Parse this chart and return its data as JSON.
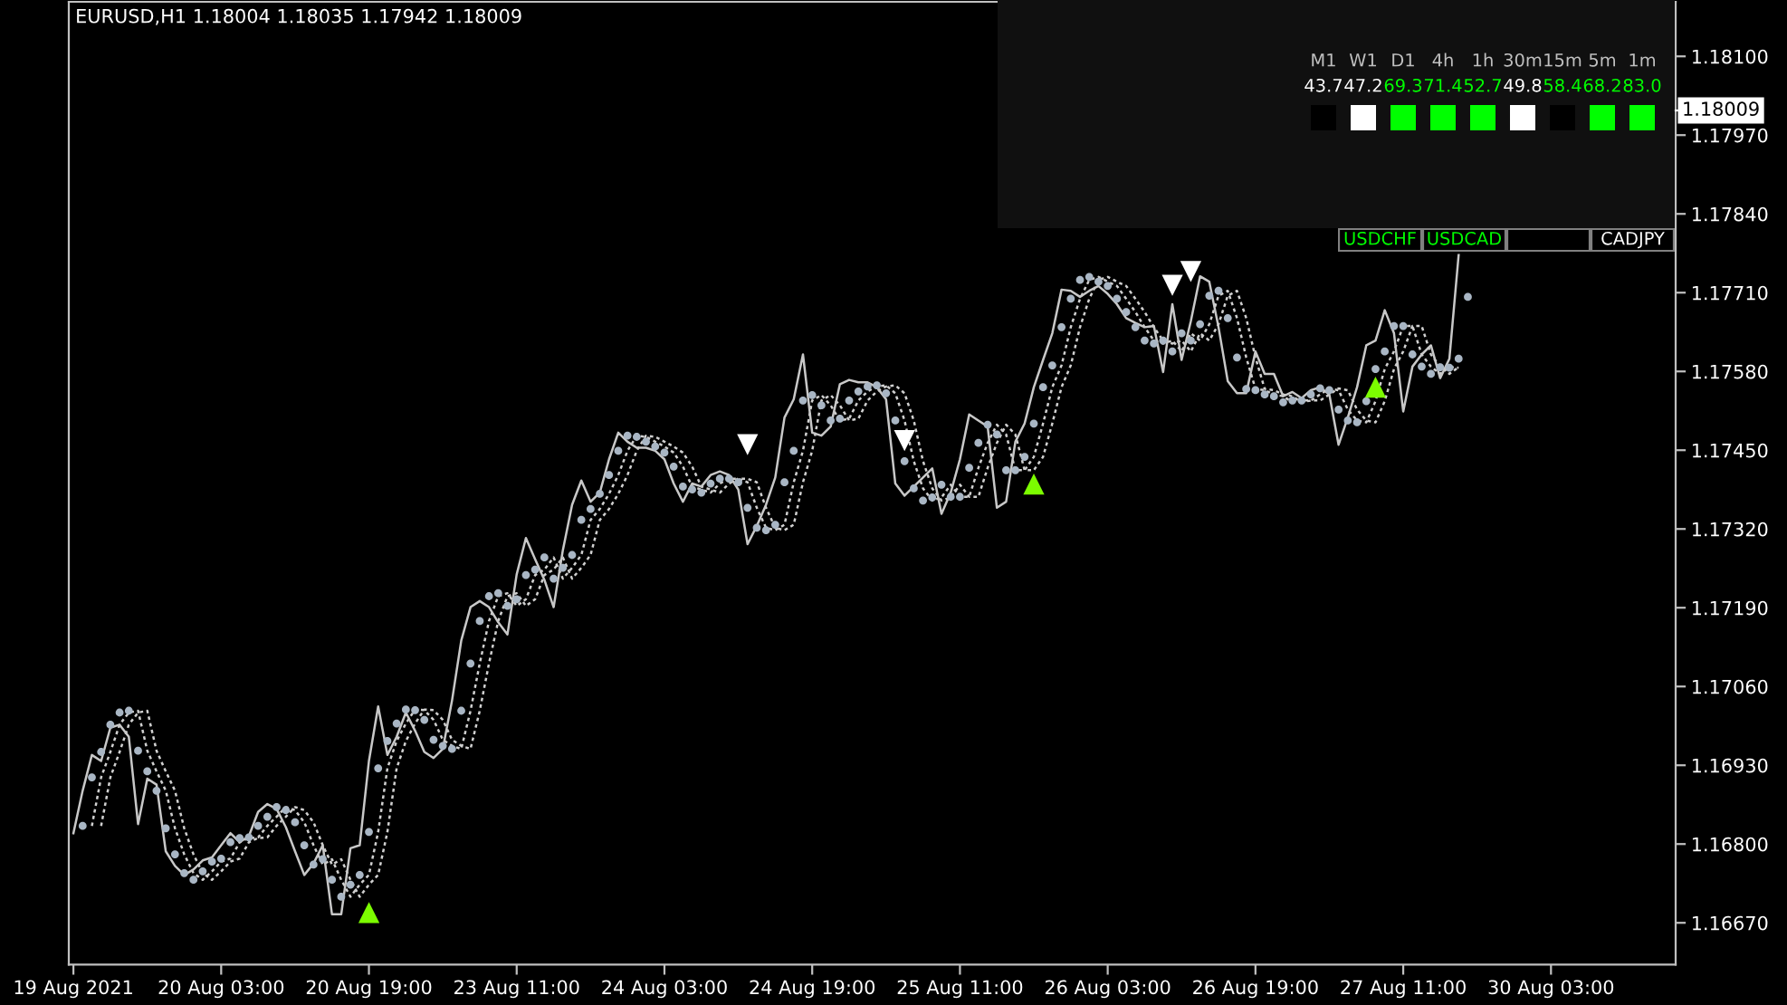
{
  "chart_data": [
    {
      "type": "line",
      "title": "EURUSD,H1 1.18004 1.18035 1.17942 1.18009",
      "categories": [
        "19 Aug 2021",
        null,
        null,
        null,
        null,
        null,
        null,
        null,
        null,
        null,
        null,
        null,
        null,
        null,
        null,
        null,
        "20 Aug 03:00",
        null,
        null,
        null,
        null,
        null,
        null,
        null,
        null,
        null,
        null,
        null,
        null,
        null,
        null,
        null,
        "20 Aug 19:00",
        null,
        null,
        null,
        null,
        null,
        null,
        null,
        null,
        null,
        null,
        null,
        null,
        null,
        null,
        null,
        "23 Aug 11:00",
        null,
        null,
        null,
        null,
        null,
        null,
        null,
        null,
        null,
        null,
        null,
        null,
        null,
        null,
        null,
        "24 Aug 03:00",
        null,
        null,
        null,
        null,
        null,
        null,
        null,
        null,
        null,
        null,
        null,
        null,
        null,
        null,
        null,
        "24 Aug 19:00",
        null,
        null,
        null,
        null,
        null,
        null,
        null,
        null,
        null,
        null,
        null,
        null,
        null,
        null,
        null,
        "25 Aug 11:00",
        null,
        null,
        null,
        null,
        null,
        null,
        null,
        null,
        null,
        null,
        null,
        null,
        null,
        null,
        null,
        "26 Aug 03:00",
        null,
        null,
        null,
        null,
        null,
        null,
        null,
        null,
        null,
        null,
        null,
        null,
        null,
        null,
        null,
        "26 Aug 19:00",
        null,
        null,
        null,
        null,
        null,
        null,
        null,
        null,
        null,
        null,
        null,
        null,
        null,
        null,
        null,
        "27 Aug 11:00",
        null,
        null,
        null,
        null,
        null,
        null,
        null,
        null,
        null,
        null,
        null,
        null,
        null,
        null,
        null,
        "30 Aug 03:00",
        null,
        null,
        null,
        null,
        null,
        null,
        null,
        null,
        null,
        null,
        null,
        null,
        null
      ],
      "series": [
        {
          "type": "line",
          "line_style": "dotted",
          "color": "#d0d0d0",
          "values": [
            null,
            null,
            1.1683,
            1.1691,
            1.16952,
            1.16997,
            1.17017,
            1.1702,
            1.16954,
            1.1692,
            1.16888,
            1.16826,
            1.16783,
            1.16752,
            1.16741,
            1.16755,
            1.16771,
            1.16776,
            1.16803,
            1.1681,
            1.16811,
            1.1683,
            1.16845,
            1.16861,
            1.16856,
            1.16836,
            1.16798,
            1.16766,
            1.16775,
            1.16741,
            1.16713,
            1.16733,
            1.16749,
            1.1682,
            1.16925,
            1.1697,
            1.16999,
            1.17022,
            1.17021,
            1.17005,
            1.16972,
            1.16962,
            1.16957,
            1.1702,
            1.17098,
            1.17168,
            1.17209,
            1.17214,
            1.17193,
            1.17204,
            1.17244,
            1.17253,
            1.17273,
            1.17238,
            1.17256,
            1.17277,
            1.17335,
            1.17353,
            1.17378,
            1.17409,
            1.17449,
            1.17474,
            1.17472,
            1.17464,
            1.17456,
            1.17446,
            1.17423,
            1.1739,
            1.17385,
            1.1738,
            1.17395,
            1.17403,
            1.17403,
            1.17397,
            1.17355,
            1.17322,
            1.17318,
            1.17327,
            1.17397,
            1.17449,
            1.17532,
            1.17541,
            1.17524,
            1.17499,
            1.17502,
            1.17532,
            1.17547,
            1.17555,
            1.17557,
            1.17544,
            1.17499,
            1.17432,
            1.17387,
            1.17367,
            1.17372,
            1.17393,
            1.17373,
            1.17373,
            1.17421,
            1.17462,
            1.17492,
            1.17476,
            1.17417,
            1.17417,
            1.17439,
            1.17494,
            1.17554,
            1.1759,
            1.17653,
            1.177,
            1.17731,
            1.17736,
            1.17728,
            1.17721,
            1.177,
            1.17678,
            1.17653,
            1.17631,
            1.17626,
            1.17631,
            1.17613,
            1.17643,
            1.17631,
            1.17658,
            1.17705,
            1.17713,
            1.17668,
            1.17603,
            1.17551,
            1.17549,
            1.17542,
            1.17539,
            1.17529,
            1.17532,
            1.17532,
            1.17542,
            1.17552,
            1.17549,
            1.17517,
            1.17499,
            1.17496,
            1.17531,
            1.17584,
            1.17613,
            1.17655,
            1.17655,
            1.17608,
            1.17588,
            1.17576,
            1.17587,
            1.17586,
            null,
            null,
            null,
            null,
            null,
            null,
            null,
            null,
            null,
            null,
            null,
            null,
            null,
            null,
            null,
            null,
            null,
            null,
            null,
            null,
            null,
            null,
            null
          ]
        },
        {
          "type": "line",
          "line_style": "dotted",
          "color": "#d0d0d0",
          "values": [
            null,
            null,
            null,
            1.1683,
            1.1691,
            1.16952,
            1.16997,
            1.17017,
            1.1702,
            1.16954,
            1.1692,
            1.16888,
            1.16826,
            1.16783,
            1.16752,
            1.16741,
            1.16755,
            1.16771,
            1.16776,
            1.16803,
            1.1681,
            1.16811,
            1.1683,
            1.16845,
            1.16861,
            1.16856,
            1.16836,
            1.16798,
            1.16766,
            1.16775,
            1.16741,
            1.16713,
            1.16733,
            1.16749,
            1.1682,
            1.16925,
            1.1697,
            1.16999,
            1.17022,
            1.17021,
            1.17005,
            1.16972,
            1.16962,
            1.16957,
            1.1702,
            1.17098,
            1.17168,
            1.17209,
            1.17214,
            1.17193,
            1.17204,
            1.17244,
            1.17253,
            1.17273,
            1.17238,
            1.17256,
            1.17277,
            1.17335,
            1.17353,
            1.17378,
            1.17409,
            1.17449,
            1.17474,
            1.17472,
            1.17464,
            1.17456,
            1.17446,
            1.17423,
            1.1739,
            1.17385,
            1.1738,
            1.17395,
            1.17403,
            1.17403,
            1.17397,
            1.17355,
            1.17322,
            1.17318,
            1.17327,
            1.17397,
            1.17449,
            1.17532,
            1.17541,
            1.17524,
            1.17499,
            1.17502,
            1.17532,
            1.17547,
            1.17555,
            1.17557,
            1.17544,
            1.17499,
            1.17432,
            1.17387,
            1.17367,
            1.17372,
            1.17393,
            1.17373,
            1.17373,
            1.17421,
            1.17462,
            1.17492,
            1.17476,
            1.17417,
            1.17417,
            1.17439,
            1.17494,
            1.17554,
            1.1759,
            1.17653,
            1.177,
            1.17731,
            1.17736,
            1.17728,
            1.17721,
            1.177,
            1.17678,
            1.17653,
            1.17631,
            1.17626,
            1.17631,
            1.17613,
            1.17643,
            1.17631,
            1.17658,
            1.17705,
            1.17713,
            1.17668,
            1.17603,
            1.17551,
            1.17549,
            1.17542,
            1.17539,
            1.17529,
            1.17532,
            1.17532,
            1.17542,
            1.17552,
            1.17549,
            1.17517,
            1.17499,
            1.17496,
            1.17531,
            1.17584,
            1.17613,
            1.17655,
            1.17655,
            1.17608,
            1.17588,
            1.17576,
            1.17587,
            null,
            null,
            null,
            null,
            null,
            null,
            null,
            null,
            null,
            null,
            null,
            null,
            null,
            null,
            null,
            null,
            null,
            null,
            null,
            null,
            null,
            null,
            null
          ]
        },
        {
          "type": "line",
          "line_style": "solid",
          "color": "#c8c8c8",
          "values": [
            1.16818,
            1.16888,
            1.16947,
            1.16937,
            1.16992,
            1.16997,
            1.16977,
            1.16833,
            1.16908,
            1.16898,
            1.16788,
            1.16764,
            1.16749,
            1.16758,
            1.16773,
            1.16778,
            1.16798,
            1.16818,
            1.16803,
            1.16813,
            1.16853,
            1.16866,
            1.16858,
            1.16828,
            1.16788,
            1.16749,
            1.16768,
            1.16798,
            1.16684,
            1.16684,
            1.16793,
            1.16798,
            1.16937,
            1.17027,
            1.16947,
            1.16977,
            1.17017,
            1.16987,
            1.16952,
            1.16942,
            1.16957,
            1.17037,
            1.17136,
            1.17191,
            1.17201,
            1.17191,
            1.17166,
            1.17146,
            1.17245,
            1.17305,
            1.1727,
            1.17236,
            1.17191,
            1.17285,
            1.1736,
            1.174,
            1.17365,
            1.1738,
            1.17435,
            1.17479,
            1.17464,
            1.17454,
            1.17454,
            1.17449,
            1.17435,
            1.17395,
            1.17365,
            1.17395,
            1.1739,
            1.17409,
            1.17415,
            1.17409,
            1.17385,
            1.17295,
            1.17325,
            1.1736,
            1.17405,
            1.17504,
            1.17534,
            1.17608,
            1.17479,
            1.17474,
            1.17489,
            1.17559,
            1.17566,
            1.17562,
            1.17562,
            1.17554,
            1.17534,
            1.17395,
            1.17375,
            1.1739,
            1.17405,
            1.1742,
            1.17345,
            1.1738,
            1.17435,
            1.17509,
            1.17499,
            1.17489,
            1.17355,
            1.17365,
            1.17464,
            1.17494,
            1.17554,
            1.17599,
            1.17643,
            1.17715,
            1.17713,
            1.17703,
            1.17713,
            1.17721,
            1.17708,
            1.17691,
            1.17668,
            1.1766,
            1.17653,
            1.17655,
            1.17579,
            1.17691,
            1.17599,
            1.17663,
            1.17737,
            1.17728,
            1.17653,
            1.17564,
            1.17544,
            1.17544,
            1.17613,
            1.17576,
            1.17576,
            1.17539,
            1.17546,
            1.17536,
            1.17549,
            1.17554,
            1.17542,
            1.17459,
            1.17504,
            1.17554,
            1.17623,
            1.17631,
            1.17681,
            1.17643,
            1.17514,
            1.17588,
            1.17608,
            1.17623,
            1.17569,
            1.17601,
            1.17772,
            null,
            null,
            null,
            null,
            null,
            null,
            null,
            null,
            null,
            null,
            null,
            null,
            null,
            null,
            null,
            null,
            null,
            null,
            null,
            null,
            null,
            null,
            null
          ]
        },
        {
          "type": "scatter",
          "marker": "circle",
          "color": "#a9b6c4",
          "values": [
            null,
            1.1683,
            1.1691,
            1.16952,
            1.16997,
            1.17017,
            1.1702,
            1.16954,
            1.1692,
            1.16888,
            1.16826,
            1.16783,
            1.16752,
            1.16741,
            1.16755,
            1.16771,
            1.16776,
            1.16803,
            1.1681,
            1.16811,
            1.1683,
            1.16845,
            1.16861,
            1.16856,
            1.16836,
            1.16798,
            1.16766,
            1.16775,
            1.16741,
            1.16713,
            1.16733,
            1.16749,
            1.1682,
            1.16925,
            1.1697,
            1.16999,
            1.17022,
            1.17021,
            1.17005,
            1.16972,
            1.16962,
            1.16957,
            1.1702,
            1.17098,
            1.17168,
            1.17209,
            1.17214,
            1.17193,
            1.17204,
            1.17244,
            1.17253,
            1.17273,
            1.17238,
            1.17256,
            1.17277,
            1.17335,
            1.17353,
            1.17378,
            1.17409,
            1.17449,
            1.17474,
            1.17472,
            1.17464,
            1.17456,
            1.17446,
            1.17423,
            1.1739,
            1.17385,
            1.1738,
            1.17395,
            1.17403,
            1.17403,
            1.17397,
            1.17355,
            1.17322,
            1.17318,
            1.17327,
            1.17397,
            1.17449,
            1.17532,
            1.17541,
            1.17524,
            1.17499,
            1.17502,
            1.17532,
            1.17547,
            1.17555,
            1.17557,
            1.17544,
            1.17499,
            1.17432,
            1.17387,
            1.17367,
            1.17372,
            1.17393,
            1.17373,
            1.17373,
            1.17421,
            1.17462,
            1.17492,
            1.17476,
            1.17417,
            1.17417,
            1.17439,
            1.17494,
            1.17554,
            1.1759,
            1.17653,
            1.177,
            1.17731,
            1.17736,
            1.17728,
            1.17721,
            1.177,
            1.17678,
            1.17653,
            1.17631,
            1.17626,
            1.17631,
            1.17613,
            1.17643,
            1.17631,
            1.17658,
            1.17705,
            1.17713,
            1.17668,
            1.17603,
            1.17551,
            1.17549,
            1.17542,
            1.17539,
            1.17529,
            1.17532,
            1.17532,
            1.17542,
            1.17552,
            1.17549,
            1.17517,
            1.17499,
            1.17496,
            1.17531,
            1.17584,
            1.17613,
            1.17655,
            1.17655,
            1.17608,
            1.17588,
            1.17576,
            1.17587,
            1.17586,
            1.17601,
            1.17703,
            null,
            null,
            null,
            null,
            null,
            null,
            null,
            null,
            null,
            null,
            null,
            null,
            null,
            null,
            null,
            null,
            null,
            null,
            null,
            null,
            null,
            null
          ]
        },
        {
          "type": "scatter",
          "marker": "triangle",
          "color": "#7cfc00",
          "values": [
            null,
            null,
            null,
            null,
            null,
            null,
            null,
            null,
            null,
            null,
            null,
            null,
            null,
            null,
            null,
            null,
            null,
            null,
            null,
            null,
            null,
            null,
            null,
            null,
            null,
            null,
            null,
            null,
            null,
            null,
            null,
            null,
            1.16687,
            null,
            null,
            null,
            null,
            null,
            null,
            null,
            null,
            null,
            null,
            null,
            null,
            null,
            null,
            null,
            null,
            null,
            null,
            null,
            null,
            null,
            null,
            null,
            null,
            null,
            null,
            null,
            null,
            null,
            null,
            null,
            null,
            null,
            null,
            null,
            null,
            null,
            null,
            null,
            null,
            null,
            null,
            null,
            null,
            null,
            null,
            null,
            null,
            null,
            null,
            null,
            null,
            null,
            null,
            null,
            null,
            null,
            null,
            null,
            null,
            null,
            null,
            null,
            null,
            null,
            null,
            null,
            null,
            null,
            null,
            null,
            1.17394,
            null,
            null,
            null,
            null,
            null,
            null,
            null,
            null,
            null,
            null,
            null,
            null,
            null,
            null,
            null,
            null,
            null,
            null,
            null,
            null,
            null,
            null,
            null,
            null,
            null,
            null,
            null,
            null,
            null,
            null,
            null,
            null,
            null,
            null,
            null,
            null,
            1.17554,
            null,
            null,
            null,
            null,
            null,
            null,
            null,
            null,
            null,
            null,
            null,
            null,
            null,
            null,
            null,
            null,
            null,
            null,
            null,
            null,
            null,
            null,
            null,
            null,
            null,
            null,
            null,
            null,
            null,
            null,
            null,
            null
          ]
        },
        {
          "type": "scatter",
          "marker": "triangle",
          "color": "#ffffff",
          "values": [
            null,
            null,
            null,
            null,
            null,
            null,
            null,
            null,
            null,
            null,
            null,
            null,
            null,
            null,
            null,
            null,
            null,
            null,
            null,
            null,
            null,
            null,
            null,
            null,
            null,
            null,
            null,
            null,
            null,
            null,
            null,
            null,
            null,
            null,
            null,
            null,
            null,
            null,
            null,
            null,
            null,
            null,
            null,
            null,
            null,
            null,
            null,
            null,
            null,
            null,
            null,
            null,
            null,
            null,
            null,
            null,
            null,
            null,
            null,
            null,
            null,
            null,
            null,
            null,
            null,
            null,
            null,
            null,
            null,
            null,
            null,
            null,
            null,
            1.17459,
            null,
            null,
            null,
            null,
            null,
            null,
            null,
            null,
            null,
            null,
            null,
            null,
            null,
            null,
            null,
            null,
            1.17466,
            null,
            null,
            null,
            null,
            null,
            null,
            null,
            null,
            null,
            null,
            null,
            null,
            null,
            null,
            null,
            null,
            null,
            null,
            null,
            null,
            null,
            null,
            null,
            null,
            null,
            null,
            null,
            null,
            1.17722,
            null,
            1.17745,
            null,
            null,
            null,
            null,
            null,
            null,
            null,
            null,
            null,
            null,
            null,
            null,
            null,
            null,
            null,
            null,
            null,
            null,
            null,
            null,
            null,
            null,
            null,
            null,
            null,
            null,
            null,
            null,
            null,
            null,
            null,
            null,
            null,
            null,
            null,
            null,
            null,
            null,
            null,
            null,
            null,
            null,
            null,
            null,
            null,
            null,
            null,
            null,
            null,
            null,
            null,
            null
          ]
        }
      ],
      "ylim": [
        1.16601,
        1.1819
      ],
      "yticks": [
        {
          "value": 1.181,
          "label": "1.18100"
        },
        {
          "value": 1.1797,
          "label": "1.17970"
        },
        {
          "value": 1.1784,
          "label": "1.17840"
        },
        {
          "value": 1.1771,
          "label": "1.17710"
        },
        {
          "value": 1.1758,
          "label": "1.17580"
        },
        {
          "value": 1.1745,
          "label": "1.17450"
        },
        {
          "value": 1.1732,
          "label": "1.17320"
        },
        {
          "value": 1.1719,
          "label": "1.17190"
        },
        {
          "value": 1.1706,
          "label": "1.17060"
        },
        {
          "value": 1.1693,
          "label": "1.16930"
        },
        {
          "value": 1.168,
          "label": "1.16800"
        },
        {
          "value": 1.1667,
          "label": "1.16670"
        }
      ],
      "annotations": [
        "1.18009"
      ],
      "grid": false
    },
    {
      "type": "other",
      "categories": [
        "M1",
        "W1",
        "D1",
        "4h",
        "1h",
        "30m",
        "15m",
        "5m",
        "1m"
      ],
      "annotations": [
        "43.7",
        "47.2",
        "69.3",
        "71.4",
        "52.7",
        "49.8",
        "58.4",
        "68.2",
        "83.0"
      ]
    },
    {
      "type": "other",
      "categories": [
        "USDCHF",
        "USDCAD",
        null,
        "CADJPY"
      ],
      "colors": [
        "#00ff00",
        "#00ff00",
        "#ffffff",
        "#ffffff"
      ]
    }
  ]
}
